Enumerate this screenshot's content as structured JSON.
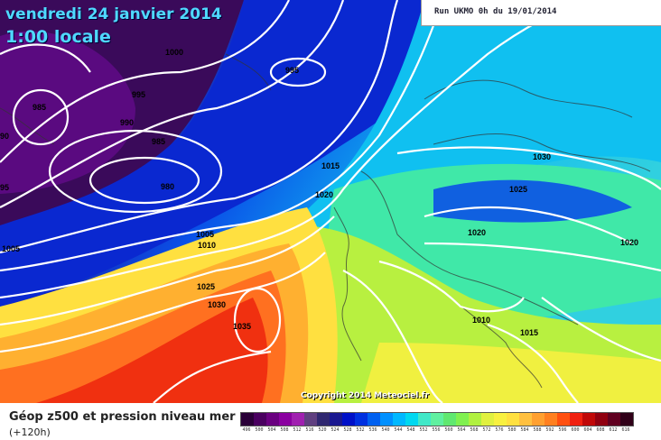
{
  "map": {
    "title_date": "vendredi 24 janvier 2014",
    "title_time": "1:00 locale",
    "run_info": "Run UKMO 0h du 19/01/2014",
    "copyright": "Copyright 2014 Meteociel.fr",
    "isobar_labels": [
      "1000",
      "995",
      "985",
      "995",
      "990",
      "985",
      "980",
      "1005",
      "1005",
      "1010",
      "1015",
      "1020",
      "1025",
      "1030",
      "1035",
      "1030",
      "1025",
      "1020",
      "1020",
      "1010",
      "1015",
      "90",
      "95"
    ]
  },
  "legend": {
    "caption": "Géop z500 et pression niveau mer",
    "forecast": "(+120h)",
    "scale_labels": [
      "496",
      "500",
      "504",
      "508",
      "512",
      "516",
      "520",
      "524",
      "528",
      "532",
      "536",
      "540",
      "544",
      "548",
      "552",
      "556",
      "560",
      "564",
      "568",
      "572",
      "576",
      "580",
      "584",
      "588",
      "592",
      "596",
      "600",
      "604",
      "608",
      "612",
      "616"
    ],
    "scale_colors": [
      "#2a0038",
      "#4a0060",
      "#6a0080",
      "#8a00a0",
      "#a020b0",
      "#604080",
      "#302870",
      "#1a1890",
      "#0010c8",
      "#0030e0",
      "#0060f0",
      "#0090ff",
      "#00b8ff",
      "#00d8f0",
      "#40e8c8",
      "#60f0a0",
      "#60e870",
      "#80f050",
      "#b0f040",
      "#e0f040",
      "#f8f040",
      "#ffe040",
      "#ffc040",
      "#ffa030",
      "#ff8020",
      "#ff5010",
      "#f02010",
      "#c00808",
      "#900010",
      "#600020",
      "#300018"
    ]
  }
}
